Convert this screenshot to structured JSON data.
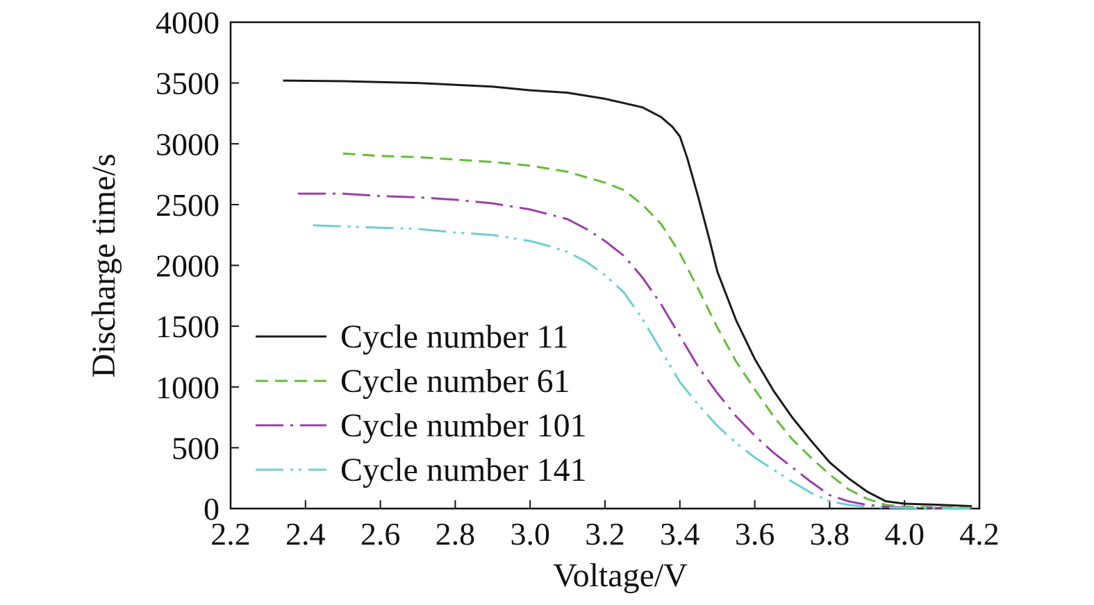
{
  "chart_data": {
    "type": "line",
    "title": "",
    "xlabel": "Voltage/V",
    "ylabel": "Discharge time/s",
    "xlim": [
      2.2,
      4.2
    ],
    "ylim": [
      0,
      4000
    ],
    "xticks": [
      "2.2",
      "2.4",
      "2.6",
      "2.8",
      "3.0",
      "3.2",
      "3.4",
      "3.6",
      "3.8",
      "4.0",
      "4.2"
    ],
    "yticks": [
      "0",
      "500",
      "1000",
      "1500",
      "2000",
      "2500",
      "3000",
      "3500",
      "4000"
    ],
    "grid": false,
    "legend_position": "lower-left",
    "series": [
      {
        "name": "Cycle number 11",
        "color": "#1a1a1a",
        "dash": "solid",
        "x": [
          2.34,
          2.5,
          2.7,
          2.9,
          3.0,
          3.1,
          3.2,
          3.3,
          3.35,
          3.38,
          3.4,
          3.42,
          3.45,
          3.48,
          3.5,
          3.55,
          3.6,
          3.65,
          3.7,
          3.75,
          3.8,
          3.85,
          3.9,
          3.95,
          4.0,
          4.1,
          4.18
        ],
        "y": [
          3520,
          3515,
          3500,
          3470,
          3440,
          3420,
          3370,
          3300,
          3220,
          3140,
          3060,
          2880,
          2550,
          2200,
          1950,
          1550,
          1230,
          970,
          750,
          560,
          380,
          250,
          140,
          60,
          40,
          30,
          20
        ]
      },
      {
        "name": "Cycle number 61",
        "color": "#66bb3a",
        "dash": "dashed",
        "x": [
          2.5,
          2.6,
          2.7,
          2.8,
          2.9,
          3.0,
          3.1,
          3.2,
          3.25,
          3.3,
          3.35,
          3.4,
          3.45,
          3.5,
          3.55,
          3.6,
          3.65,
          3.7,
          3.75,
          3.8,
          3.85,
          3.9,
          3.95,
          4.0,
          4.1,
          4.18
        ],
        "y": [
          2920,
          2900,
          2890,
          2870,
          2850,
          2820,
          2770,
          2680,
          2620,
          2500,
          2340,
          2100,
          1800,
          1490,
          1210,
          980,
          760,
          570,
          420,
          280,
          160,
          80,
          30,
          15,
          10,
          5
        ]
      },
      {
        "name": "Cycle number 101",
        "color": "#9b3ea8",
        "dash": "dashdot",
        "x": [
          2.38,
          2.5,
          2.6,
          2.7,
          2.8,
          2.9,
          3.0,
          3.1,
          3.15,
          3.2,
          3.25,
          3.3,
          3.35,
          3.4,
          3.45,
          3.5,
          3.55,
          3.6,
          3.65,
          3.7,
          3.75,
          3.8,
          3.85,
          3.9,
          3.95,
          4.0,
          4.1,
          4.18
        ],
        "y": [
          2590,
          2590,
          2570,
          2560,
          2540,
          2510,
          2460,
          2380,
          2300,
          2200,
          2080,
          1900,
          1680,
          1420,
          1160,
          950,
          760,
          600,
          460,
          340,
          220,
          110,
          60,
          30,
          15,
          8,
          5,
          3
        ]
      },
      {
        "name": "Cycle number 141",
        "color": "#6ccfd3",
        "dash": "dashdotdot",
        "x": [
          2.42,
          2.5,
          2.6,
          2.7,
          2.8,
          2.9,
          3.0,
          3.05,
          3.1,
          3.15,
          3.2,
          3.25,
          3.3,
          3.35,
          3.4,
          3.45,
          3.5,
          3.55,
          3.6,
          3.65,
          3.7,
          3.75,
          3.8,
          3.85,
          3.9,
          3.95,
          4.0,
          4.1,
          4.18
        ],
        "y": [
          2330,
          2320,
          2310,
          2300,
          2270,
          2250,
          2200,
          2160,
          2110,
          2030,
          1920,
          1780,
          1560,
          1300,
          1040,
          850,
          680,
          540,
          420,
          320,
          220,
          130,
          60,
          30,
          15,
          8,
          5,
          3,
          2
        ]
      }
    ]
  }
}
